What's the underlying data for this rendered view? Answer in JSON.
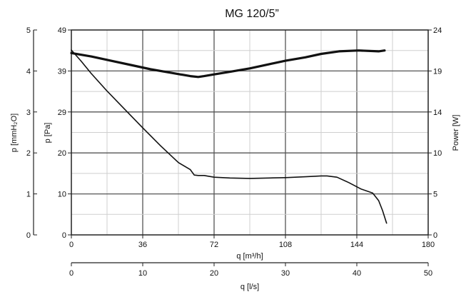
{
  "chart_data": {
    "type": "line",
    "title": "MG 120/5”",
    "xlabel": "q [m³/h]",
    "xlim": [
      0,
      180
    ],
    "xticks": [
      "0",
      "36",
      "72",
      "108",
      "144",
      "180"
    ],
    "x2label": "q [l/s]",
    "x2lim": [
      0,
      50
    ],
    "x2ticks": [
      "0",
      "10",
      "20",
      "30",
      "40",
      "50"
    ],
    "ylabel_outer": "p [mmH₂O]",
    "yticks_outer": [
      "0",
      "1",
      "2",
      "3",
      "4",
      "5"
    ],
    "ylabel": "p [Pa]",
    "ylim": [
      0,
      49
    ],
    "yticks": [
      "0",
      "10",
      "20",
      "29",
      "39",
      "49"
    ],
    "y2label": "Power [W]",
    "y2lim": [
      0,
      24
    ],
    "y2ticks": [
      "0",
      "5",
      "10",
      "14",
      "19",
      "24"
    ],
    "grid": true,
    "series": [
      {
        "axis": "left",
        "x": [
          0,
          5,
          10,
          18,
          27,
          36,
          45,
          54,
          60,
          62,
          64,
          67,
          72,
          80,
          90,
          100,
          108,
          118,
          126,
          129,
          134,
          140,
          146,
          152,
          155,
          157,
          159
        ],
        "y": [
          44.2,
          41.5,
          38.6,
          34.4,
          30.0,
          25.6,
          21.3,
          17.3,
          15.6,
          14.3,
          14.2,
          14.2,
          13.8,
          13.6,
          13.5,
          13.6,
          13.7,
          13.9,
          14.1,
          14.1,
          13.8,
          12.5,
          11.0,
          10.0,
          8.2,
          5.8,
          2.8
        ]
      },
      {
        "axis": "right",
        "x": [
          0,
          10,
          20,
          30,
          40,
          50,
          60,
          64,
          67,
          72,
          80,
          90,
          100,
          108,
          118,
          126,
          135,
          145,
          155,
          158
        ],
        "y": [
          21.3,
          20.9,
          20.4,
          19.9,
          19.4,
          19.0,
          18.6,
          18.5,
          18.6,
          18.8,
          19.1,
          19.5,
          20.0,
          20.4,
          20.8,
          21.2,
          21.5,
          21.6,
          21.5,
          21.6
        ]
      }
    ]
  }
}
